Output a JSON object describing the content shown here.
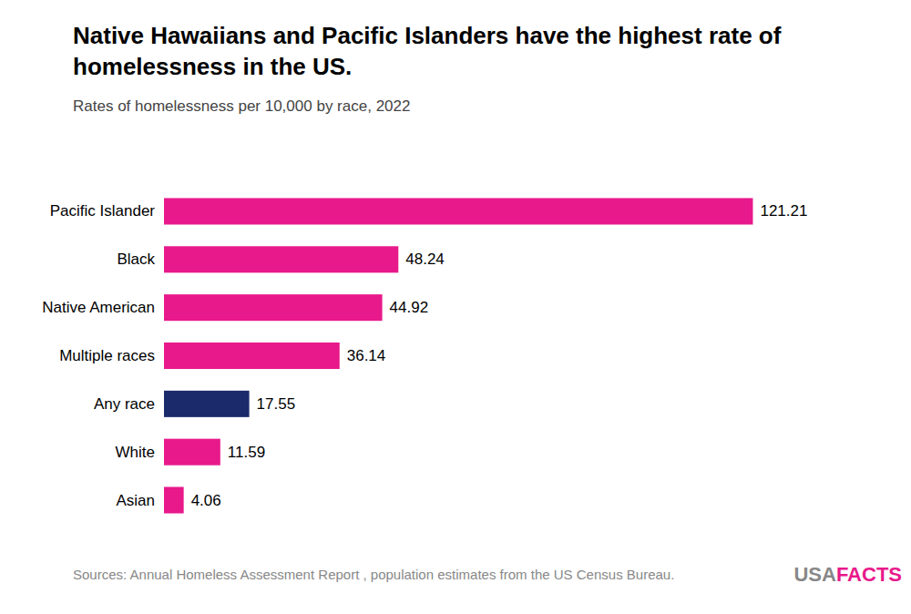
{
  "chart_data": {
    "type": "bar",
    "orientation": "horizontal",
    "title": "Native Hawaiians and Pacific Islanders have the highest rate of homelessness in the US.",
    "subtitle": "Rates of homelessness per 10,000 by race, 2022",
    "categories": [
      "Pacific Islander",
      "Black",
      "Native American",
      "Multiple races",
      "Any race",
      "White",
      "Asian"
    ],
    "values": [
      121.21,
      48.24,
      44.92,
      36.14,
      17.55,
      11.59,
      4.06
    ],
    "colors": [
      "#E8198B",
      "#E8198B",
      "#E8198B",
      "#E8198B",
      "#1B2A6B",
      "#E8198B",
      "#E8198B"
    ],
    "xlim": [
      0,
      135
    ],
    "data_labels": true,
    "tick_labels": "y",
    "grid": false,
    "annotations": [
      "Sources: Annual Homeless Assessment Report , population estimates from the US Census Bureau.",
      "USA",
      "FACTS"
    ]
  }
}
